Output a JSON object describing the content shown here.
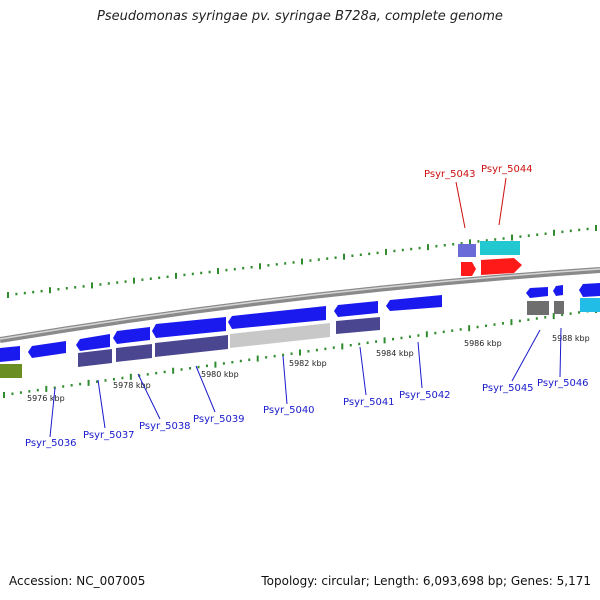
{
  "title": "Pseudomonas syringae pv. syringae B728a, complete genome",
  "footer": {
    "accession": "Accession: NC_007005",
    "summary": "Topology: circular; Length: 6,093,698 bp; Genes: 5,171"
  },
  "colors": {
    "backbone": "#8a8a8a",
    "tick": "#2e8b2e",
    "gene_forward": "#1a1aee",
    "gene_reverse": "#1a1aee",
    "cds_dark": "#4a4690",
    "cds_gray": "#c8c8c8",
    "gene_red": "#ff1a1a",
    "gene_cyan": "#22c8d0",
    "gene_olive": "#6b8e23",
    "label_blue": "#1a1acc",
    "label_red": "#cc1111"
  },
  "scale_labels": [
    "5976 kbp",
    "5978 kbp",
    "5980 kbp",
    "5982 kbp",
    "5984 kbp",
    "5986 kbp",
    "5988 kbp"
  ],
  "gene_labels": [
    {
      "text": "Psyr_5036",
      "color": "blue"
    },
    {
      "text": "Psyr_5037",
      "color": "blue"
    },
    {
      "text": "Psyr_5038",
      "color": "blue"
    },
    {
      "text": "Psyr_5039",
      "color": "blue"
    },
    {
      "text": "Psyr_5040",
      "color": "blue"
    },
    {
      "text": "Psyr_5041",
      "color": "blue"
    },
    {
      "text": "Psyr_5042",
      "color": "blue"
    },
    {
      "text": "Psyr_5043",
      "color": "red"
    },
    {
      "text": "Psyr_5044",
      "color": "red"
    },
    {
      "text": "Psyr_5045",
      "color": "blue"
    },
    {
      "text": "Psyr_5046",
      "color": "blue"
    }
  ]
}
